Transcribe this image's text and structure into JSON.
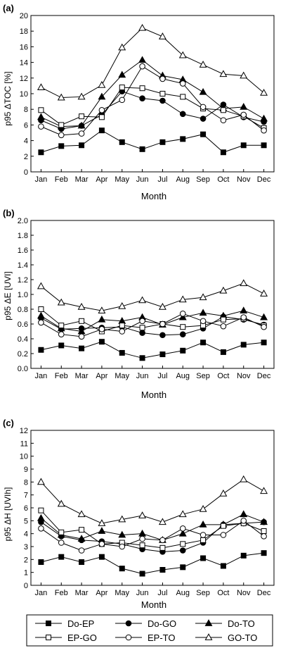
{
  "legend": {
    "entries": [
      "Do-EP",
      "Do-GO",
      "Do-TO",
      "EP-GO",
      "EP-TO",
      "GO-TO"
    ],
    "placement": "bottom"
  },
  "chart_data": [
    {
      "type": "line",
      "panel_label": "(a)",
      "xlabel": "Month",
      "ylabel": "p95 ΔTOC [%]",
      "categories": [
        "Jan",
        "Feb",
        "Mar",
        "Apr",
        "May",
        "Jun",
        "Jul",
        "Aug",
        "Sep",
        "Oct",
        "Nov",
        "Dec"
      ],
      "ylim": [
        0,
        20
      ],
      "yticks": [
        0,
        2,
        4,
        6,
        8,
        10,
        12,
        14,
        16,
        18,
        20
      ],
      "ytick_labels": [
        "0",
        "2",
        "4",
        "6",
        "8",
        "10",
        "12",
        "14",
        "16",
        "18",
        "20"
      ],
      "series": [
        {
          "name": "Do-EP",
          "marker": "square-filled",
          "values": [
            2.5,
            3.3,
            3.4,
            5.3,
            3.8,
            2.9,
            3.8,
            4.2,
            4.8,
            2.5,
            3.4,
            3.4
          ]
        },
        {
          "name": "Do-GO",
          "marker": "circle-filled",
          "values": [
            6.6,
            5.5,
            5.9,
            7.3,
            10.3,
            9.4,
            9.1,
            7.4,
            6.8,
            8.6,
            7.0,
            6.4
          ]
        },
        {
          "name": "Do-TO",
          "marker": "triangle-filled",
          "values": [
            7.0,
            5.8,
            5.9,
            9.6,
            12.4,
            14.3,
            12.3,
            11.8,
            10.2,
            8.1,
            8.3,
            6.8
          ]
        },
        {
          "name": "EP-GO",
          "marker": "square-open",
          "values": [
            7.9,
            6.0,
            7.1,
            7.0,
            10.8,
            10.7,
            10.0,
            9.6,
            8.1,
            7.9,
            7.1,
            5.6
          ]
        },
        {
          "name": "EP-TO",
          "marker": "circle-open",
          "values": [
            5.8,
            4.7,
            4.9,
            7.9,
            9.2,
            13.5,
            11.9,
            11.3,
            8.3,
            6.6,
            7.3,
            5.3
          ]
        },
        {
          "name": "GO-TO",
          "marker": "triangle-open",
          "values": [
            10.8,
            9.5,
            9.6,
            11.1,
            15.9,
            18.4,
            17.3,
            14.9,
            13.7,
            12.5,
            12.3,
            10.1
          ]
        }
      ]
    },
    {
      "type": "line",
      "panel_label": "(b)",
      "xlabel": "Month",
      "ylabel": "p95 ΔE [UVI]",
      "categories": [
        "Jan",
        "Feb",
        "Mar",
        "Apr",
        "May",
        "Jun",
        "Jul",
        "Aug",
        "Sep",
        "Oct",
        "Nov",
        "Dec"
      ],
      "ylim": [
        0,
        2.0
      ],
      "yticks": [
        0,
        0.2,
        0.4,
        0.6,
        0.8,
        1.0,
        1.2,
        1.4,
        1.6,
        1.8,
        2.0
      ],
      "ytick_labels": [
        "0.0",
        "0.2",
        "0.4",
        "0.6",
        "0.8",
        "1.0",
        "1.2",
        "1.4",
        "1.6",
        "1.8",
        "2.0"
      ],
      "series": [
        {
          "name": "Do-EP",
          "marker": "square-filled",
          "values": [
            0.25,
            0.31,
            0.27,
            0.36,
            0.21,
            0.14,
            0.19,
            0.24,
            0.35,
            0.22,
            0.32,
            0.35
          ]
        },
        {
          "name": "Do-GO",
          "marker": "circle-filled",
          "values": [
            0.68,
            0.53,
            0.54,
            0.55,
            0.56,
            0.48,
            0.45,
            0.46,
            0.54,
            0.7,
            0.66,
            0.59
          ]
        },
        {
          "name": "Do-TO",
          "marker": "triangle-filled",
          "values": [
            0.71,
            0.54,
            0.5,
            0.66,
            0.64,
            0.69,
            0.59,
            0.69,
            0.75,
            0.71,
            0.78,
            0.69
          ]
        },
        {
          "name": "EP-GO",
          "marker": "square-open",
          "values": [
            0.8,
            0.58,
            0.64,
            0.5,
            0.58,
            0.55,
            0.6,
            0.56,
            0.58,
            0.66,
            0.67,
            0.58
          ]
        },
        {
          "name": "EP-TO",
          "marker": "circle-open",
          "values": [
            0.62,
            0.46,
            0.43,
            0.53,
            0.5,
            0.64,
            0.6,
            0.74,
            0.64,
            0.57,
            0.69,
            0.56
          ]
        },
        {
          "name": "GO-TO",
          "marker": "triangle-open",
          "values": [
            1.11,
            0.89,
            0.83,
            0.78,
            0.84,
            0.92,
            0.83,
            0.93,
            0.96,
            1.05,
            1.15,
            1.01
          ]
        }
      ]
    },
    {
      "type": "line",
      "panel_label": "(c)",
      "xlabel": "Month",
      "ylabel": "p95 ΔH [UVIh]",
      "categories": [
        "Jan",
        "Feb",
        "Mar",
        "Apr",
        "May",
        "Jun",
        "Jul",
        "Aug",
        "Sep",
        "Oct",
        "Nov",
        "Dec"
      ],
      "ylim": [
        0,
        12
      ],
      "yticks": [
        0,
        1,
        2,
        3,
        4,
        5,
        6,
        7,
        8,
        9,
        10,
        11,
        12
      ],
      "ytick_labels": [
        "0",
        "1",
        "2",
        "3",
        "4",
        "5",
        "6",
        "7",
        "8",
        "9",
        "10",
        "11",
        "12"
      ],
      "series": [
        {
          "name": "Do-EP",
          "marker": "square-filled",
          "values": [
            1.8,
            2.2,
            1.8,
            2.2,
            1.3,
            0.9,
            1.2,
            1.4,
            2.1,
            1.5,
            2.3,
            2.5
          ]
        },
        {
          "name": "Do-GO",
          "marker": "circle-filled",
          "values": [
            4.9,
            3.8,
            3.5,
            3.4,
            3.2,
            2.8,
            2.6,
            2.7,
            3.3,
            4.7,
            4.8,
            4.9
          ]
        },
        {
          "name": "Do-TO",
          "marker": "triangle-filled",
          "values": [
            5.2,
            3.9,
            3.6,
            4.2,
            3.9,
            4.0,
            3.5,
            4.0,
            4.7,
            4.7,
            5.5,
            4.9
          ]
        },
        {
          "name": "EP-GO",
          "marker": "square-open",
          "values": [
            5.8,
            4.1,
            4.3,
            3.2,
            3.3,
            3.1,
            2.9,
            3.2,
            3.5,
            4.6,
            4.8,
            4.2
          ]
        },
        {
          "name": "EP-TO",
          "marker": "circle-open",
          "values": [
            4.4,
            3.3,
            2.7,
            3.2,
            3.0,
            3.6,
            3.5,
            4.4,
            3.9,
            3.9,
            5.0,
            3.8
          ]
        },
        {
          "name": "GO-TO",
          "marker": "triangle-open",
          "values": [
            8.0,
            6.3,
            5.5,
            4.8,
            5.1,
            5.4,
            4.9,
            5.5,
            5.9,
            7.1,
            8.2,
            7.3
          ]
        }
      ]
    }
  ]
}
